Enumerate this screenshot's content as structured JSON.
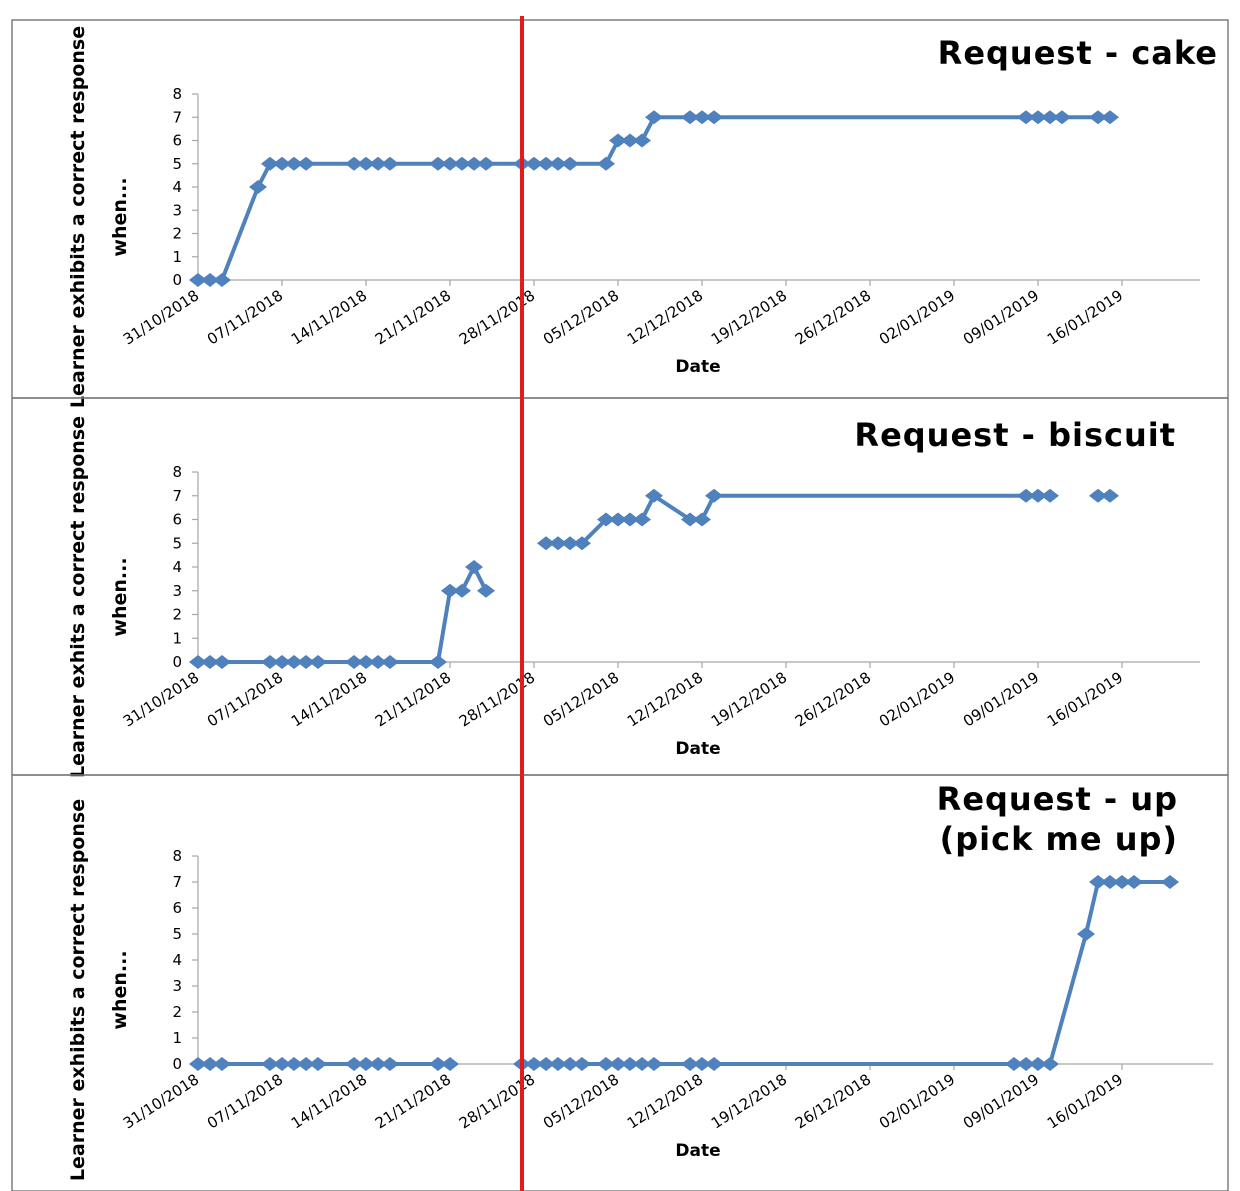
{
  "colors": {
    "series": "#4f81bd",
    "phase_line": "#e41a1c",
    "axis": "#a6a6a6",
    "frame": "#7f7f7f"
  },
  "phase_change_date": "27/11/2018",
  "chart_data": [
    {
      "type": "line",
      "title": [
        "Request - cake"
      ],
      "xlabel": "Date",
      "ylabel": [
        "Learner exhibits a correct response",
        "when..."
      ],
      "ylim": [
        0,
        8
      ],
      "xlim": [
        "31/10/2018",
        "20/01/2019"
      ],
      "x_ticks": [
        "31/10/2018",
        "07/11/2018",
        "14/11/2018",
        "21/11/2018",
        "28/11/2018",
        "05/12/2018",
        "12/12/2018",
        "19/12/2018",
        "26/12/2018",
        "02/01/2019",
        "09/01/2019",
        "16/01/2019"
      ],
      "y_ticks": [
        0,
        1,
        2,
        3,
        4,
        5,
        6,
        7,
        8
      ],
      "marker": "diamond",
      "segments": [
        [
          [
            "31/10/2018",
            0
          ],
          [
            "01/11/2018",
            0
          ],
          [
            "02/11/2018",
            0
          ],
          [
            "05/11/2018",
            4
          ],
          [
            "06/11/2018",
            5
          ],
          [
            "07/11/2018",
            5
          ],
          [
            "08/11/2018",
            5
          ],
          [
            "09/11/2018",
            5
          ],
          [
            "13/11/2018",
            5
          ],
          [
            "14/11/2018",
            5
          ],
          [
            "15/11/2018",
            5
          ],
          [
            "16/11/2018",
            5
          ],
          [
            "20/11/2018",
            5
          ],
          [
            "21/11/2018",
            5
          ],
          [
            "22/11/2018",
            5
          ],
          [
            "23/11/2018",
            5
          ],
          [
            "24/11/2018",
            5
          ],
          [
            "27/11/2018",
            5
          ],
          [
            "28/11/2018",
            5
          ],
          [
            "29/11/2018",
            5
          ],
          [
            "30/11/2018",
            5
          ],
          [
            "01/12/2018",
            5
          ],
          [
            "04/12/2018",
            5
          ],
          [
            "05/12/2018",
            6
          ],
          [
            "06/12/2018",
            6
          ],
          [
            "07/12/2018",
            6
          ],
          [
            "08/12/2018",
            7
          ],
          [
            "11/12/2018",
            7
          ],
          [
            "12/12/2018",
            7
          ],
          [
            "13/12/2018",
            7
          ],
          [
            "08/01/2019",
            7
          ],
          [
            "09/01/2019",
            7
          ],
          [
            "10/01/2019",
            7
          ],
          [
            "11/01/2019",
            7
          ],
          [
            "14/01/2019",
            7
          ],
          [
            "15/01/2019",
            7
          ]
        ]
      ]
    },
    {
      "type": "line",
      "title": [
        "Request - biscuit"
      ],
      "xlabel": "Date",
      "ylabel": [
        "Learner exhits a correct response",
        "when..."
      ],
      "ylim": [
        0,
        8
      ],
      "xlim": [
        "31/10/2018",
        "20/01/2019"
      ],
      "x_ticks": [
        "31/10/2018",
        "07/11/2018",
        "14/11/2018",
        "21/11/2018",
        "28/11/2018",
        "05/12/2018",
        "12/12/2018",
        "19/12/2018",
        "26/12/2018",
        "02/01/2019",
        "09/01/2019",
        "16/01/2019"
      ],
      "y_ticks": [
        0,
        1,
        2,
        3,
        4,
        5,
        6,
        7,
        8
      ],
      "marker": "diamond",
      "segments": [
        [
          [
            "31/10/2018",
            0
          ],
          [
            "01/11/2018",
            0
          ],
          [
            "02/11/2018",
            0
          ],
          [
            "06/11/2018",
            0
          ],
          [
            "07/11/2018",
            0
          ],
          [
            "08/11/2018",
            0
          ],
          [
            "09/11/2018",
            0
          ],
          [
            "10/11/2018",
            0
          ],
          [
            "13/11/2018",
            0
          ],
          [
            "14/11/2018",
            0
          ],
          [
            "15/11/2018",
            0
          ],
          [
            "16/11/2018",
            0
          ],
          [
            "20/11/2018",
            0
          ],
          [
            "21/11/2018",
            3
          ],
          [
            "22/11/2018",
            3
          ],
          [
            "23/11/2018",
            4
          ],
          [
            "24/11/2018",
            3
          ]
        ],
        [
          [
            "29/11/2018",
            5
          ],
          [
            "30/11/2018",
            5
          ],
          [
            "01/12/2018",
            5
          ],
          [
            "02/12/2018",
            5
          ],
          [
            "04/12/2018",
            6
          ],
          [
            "05/12/2018",
            6
          ],
          [
            "06/12/2018",
            6
          ],
          [
            "07/12/2018",
            6
          ],
          [
            "08/12/2018",
            7
          ],
          [
            "11/12/2018",
            6
          ],
          [
            "12/12/2018",
            6
          ],
          [
            "13/12/2018",
            7
          ],
          [
            "08/01/2019",
            7
          ],
          [
            "09/01/2019",
            7
          ],
          [
            "10/01/2019",
            7
          ]
        ],
        [
          [
            "14/01/2019",
            7
          ],
          [
            "15/01/2019",
            7
          ]
        ]
      ]
    },
    {
      "type": "line",
      "title": [
        "Request - up",
        "(pick me up)"
      ],
      "xlabel": "Date",
      "ylabel": [
        "Learner exhibits a correct response",
        "when..."
      ],
      "ylim": [
        0,
        8
      ],
      "xlim": [
        "31/10/2018",
        "20/01/2019"
      ],
      "x_ticks": [
        "31/10/2018",
        "07/11/2018",
        "14/11/2018",
        "21/11/2018",
        "28/11/2018",
        "05/12/2018",
        "12/12/2018",
        "19/12/2018",
        "26/12/2018",
        "02/01/2019",
        "09/01/2019",
        "16/01/2019"
      ],
      "y_ticks": [
        0,
        1,
        2,
        3,
        4,
        5,
        6,
        7,
        8
      ],
      "marker": "diamond",
      "segments": [
        [
          [
            "31/10/2018",
            0
          ],
          [
            "01/11/2018",
            0
          ],
          [
            "02/11/2018",
            0
          ],
          [
            "06/11/2018",
            0
          ],
          [
            "07/11/2018",
            0
          ],
          [
            "08/11/2018",
            0
          ],
          [
            "09/11/2018",
            0
          ],
          [
            "10/11/2018",
            0
          ],
          [
            "13/11/2018",
            0
          ],
          [
            "14/11/2018",
            0
          ],
          [
            "15/11/2018",
            0
          ],
          [
            "16/11/2018",
            0
          ],
          [
            "20/11/2018",
            0
          ],
          [
            "21/11/2018",
            0
          ]
        ],
        [
          [
            "27/11/2018",
            0
          ],
          [
            "28/11/2018",
            0
          ],
          [
            "29/11/2018",
            0
          ],
          [
            "30/11/2018",
            0
          ],
          [
            "01/12/2018",
            0
          ],
          [
            "02/12/2018",
            0
          ],
          [
            "04/12/2018",
            0
          ],
          [
            "05/12/2018",
            0
          ],
          [
            "06/12/2018",
            0
          ],
          [
            "07/12/2018",
            0
          ],
          [
            "08/12/2018",
            0
          ],
          [
            "11/12/2018",
            0
          ],
          [
            "12/12/2018",
            0
          ],
          [
            "13/12/2018",
            0
          ],
          [
            "07/01/2019",
            0
          ],
          [
            "08/01/2019",
            0
          ],
          [
            "09/01/2019",
            0
          ],
          [
            "10/01/2019",
            0
          ],
          [
            "13/01/2019",
            5
          ],
          [
            "14/01/2019",
            7
          ],
          [
            "15/01/2019",
            7
          ],
          [
            "16/01/2019",
            7
          ],
          [
            "17/01/2019",
            7
          ],
          [
            "20/01/2019",
            7
          ]
        ]
      ]
    }
  ]
}
